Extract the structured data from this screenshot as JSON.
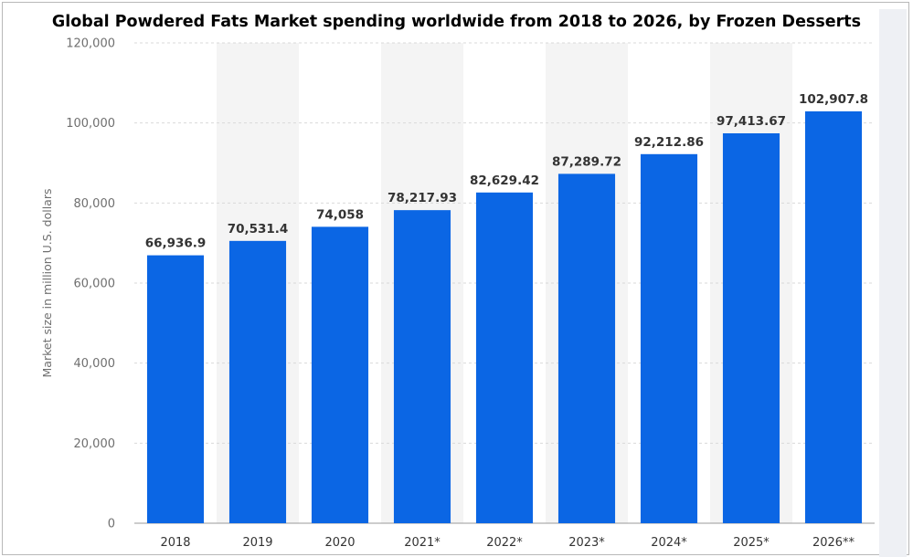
{
  "chart_data": {
    "type": "bar",
    "title": "Global Powdered Fats Market spending worldwide from 2018 to 2026, by Frozen Desserts",
    "xlabel": "",
    "ylabel": "Market size in million U.S. dollars",
    "categories": [
      "2018",
      "2019",
      "2020",
      "2021*",
      "2022*",
      "2023*",
      "2024*",
      "2025*",
      "2026**"
    ],
    "values": [
      66936.9,
      70531.4,
      74058,
      78217.93,
      82629.42,
      87289.72,
      92212.86,
      97413.67,
      102907.8
    ],
    "value_labels": [
      "66,936.9",
      "70,531.4",
      "74,058",
      "78,217.93",
      "82,629.42",
      "87,289.72",
      "92,212.86",
      "97,413.67",
      "102,907.8"
    ],
    "ylim": [
      0,
      120000
    ],
    "y_ticks": [
      0,
      20000,
      40000,
      60000,
      80000,
      100000,
      120000
    ],
    "y_tick_labels": [
      "0",
      "20,000",
      "40,000",
      "60,000",
      "80,000",
      "100,000",
      "120,000"
    ],
    "grid": true,
    "legend": "none",
    "bar_color": "#0b66e4",
    "alternate_band_color": "#f4f4f4",
    "grid_color": "#d9d9d9"
  }
}
